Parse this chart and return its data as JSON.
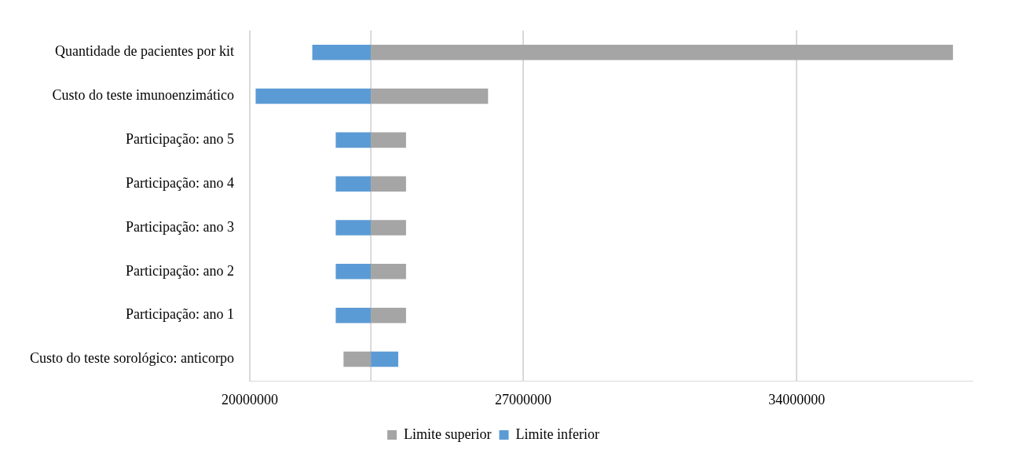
{
  "chart_data": {
    "type": "bar",
    "orientation": "horizontal",
    "categories": [
      "Quantidade de pacientes por kit",
      "Custo do teste imunoenzimático",
      "Participação: ano 5",
      "Participação: ano 4",
      "Participação: ano 3",
      "Participação: ano 2",
      "Participação: ano 1",
      "Custo do teste sorológico: anticorpo"
    ],
    "series": [
      {
        "name": "Limite superior",
        "color": "#a5a5a5",
        "base": [
          23100000,
          23100000,
          23100000,
          23100000,
          23100000,
          23100000,
          23100000,
          23100000
        ],
        "values": [
          14900000,
          3000000,
          900000,
          900000,
          900000,
          900000,
          900000,
          -700000
        ]
      },
      {
        "name": "Limite inferior",
        "color": "#5b9bd5",
        "base": [
          23100000,
          23100000,
          23100000,
          23100000,
          23100000,
          23100000,
          23100000,
          23100000
        ],
        "values": [
          -1500000,
          -2950000,
          -900000,
          -900000,
          -900000,
          -900000,
          -900000,
          700000
        ]
      }
    ],
    "xlim": [
      20000000,
      38500000
    ],
    "xticks": [
      20000000,
      27000000,
      34000000
    ],
    "ref_lines": [
      {
        "axis": "x",
        "value": 23100000,
        "color": "#d9d9d9"
      }
    ],
    "grid": "x",
    "legend": "bottom"
  }
}
